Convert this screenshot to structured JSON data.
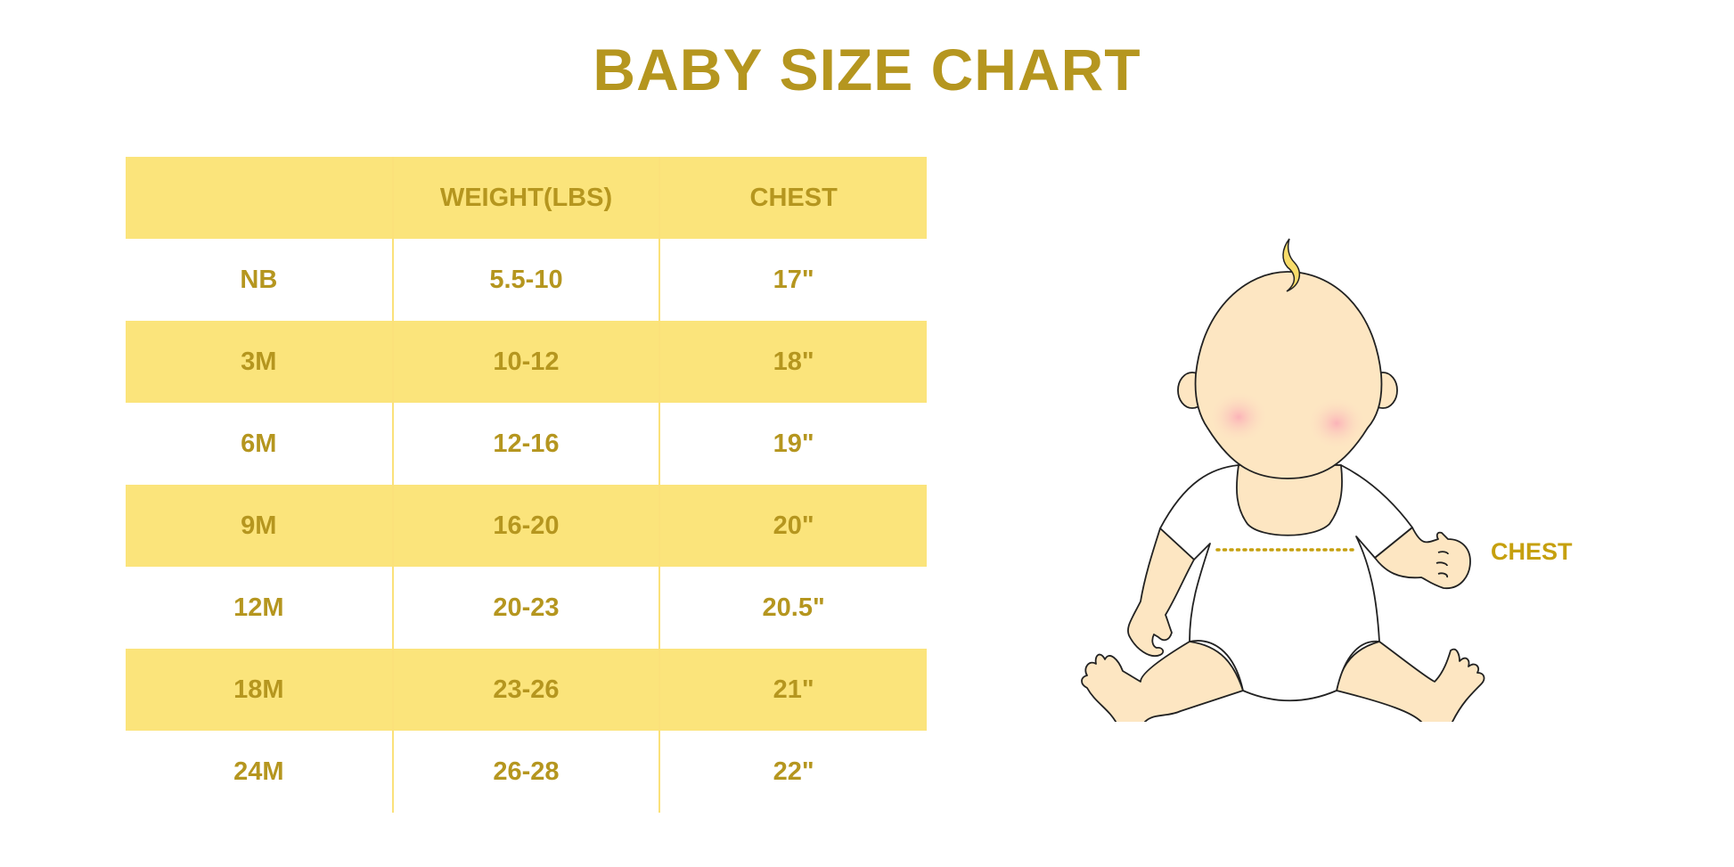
{
  "title": "BABY SIZE CHART",
  "table": {
    "headers": [
      "",
      "WEIGHT(LBS)",
      "CHEST"
    ],
    "rows": [
      [
        "NB",
        "5.5-10",
        "17\""
      ],
      [
        "3M",
        "10-12",
        "18\""
      ],
      [
        "6M",
        "12-16",
        "19\""
      ],
      [
        "9M",
        "16-20",
        "20\""
      ],
      [
        "12M",
        "20-23",
        "20.5\""
      ],
      [
        "18M",
        "23-26",
        "21\""
      ],
      [
        "24M",
        "26-28",
        "22\""
      ]
    ]
  },
  "illustration": {
    "chest_label": "CHEST"
  },
  "colors": {
    "text": "#b5961f",
    "band": "#fbe47b",
    "skin": "#fde6c2"
  }
}
